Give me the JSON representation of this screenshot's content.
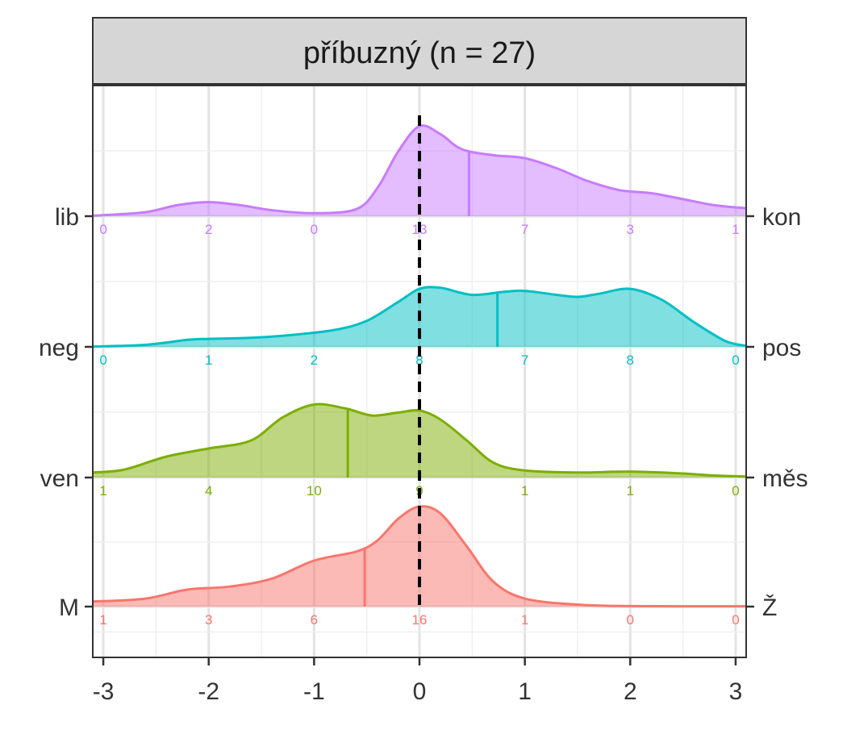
{
  "chart_data": {
    "type": "area",
    "title": "příbuzný (n = 27)",
    "xlim": [
      -3.1,
      3.1
    ],
    "x_ticks": [
      -3,
      -2,
      -1,
      0,
      1,
      2,
      3
    ],
    "x_tick_labels": [
      "-3",
      "-2",
      "-1",
      "0",
      "1",
      "2",
      "3"
    ],
    "reference_line_x": 0,
    "grid": true,
    "series": [
      {
        "left_label": "lib",
        "right_label": "kon",
        "color": "#C77CFF",
        "mean": 0.47,
        "count_positions": [
          -3,
          -2,
          -1,
          0,
          1,
          2,
          3
        ],
        "counts": [
          "0",
          "2",
          "0",
          "13",
          "7",
          "3",
          "1"
        ],
        "density": [
          [
            -3.1,
            0.005
          ],
          [
            -3,
            0.01
          ],
          [
            -2.6,
            0.04
          ],
          [
            -2.3,
            0.11
          ],
          [
            -2,
            0.14
          ],
          [
            -1.7,
            0.11
          ],
          [
            -1.4,
            0.06
          ],
          [
            -1,
            0.03
          ],
          [
            -0.6,
            0.07
          ],
          [
            -0.4,
            0.28
          ],
          [
            -0.2,
            0.65
          ],
          [
            0,
            0.9
          ],
          [
            0.2,
            0.82
          ],
          [
            0.4,
            0.67
          ],
          [
            0.7,
            0.61
          ],
          [
            1,
            0.58
          ],
          [
            1.3,
            0.48
          ],
          [
            1.6,
            0.35
          ],
          [
            1.9,
            0.26
          ],
          [
            2.2,
            0.23
          ],
          [
            2.5,
            0.17
          ],
          [
            2.8,
            0.11
          ],
          [
            3.1,
            0.08
          ]
        ]
      },
      {
        "left_label": "neg",
        "right_label": "pos",
        "color": "#00BFC4",
        "mean": 0.74,
        "count_positions": [
          -3,
          -2,
          -1,
          0,
          1,
          2,
          3
        ],
        "counts": [
          "0",
          "1",
          "2",
          "8",
          "7",
          "8",
          "0"
        ],
        "density": [
          [
            -3.1,
            0.003
          ],
          [
            -2.6,
            0.02
          ],
          [
            -2.2,
            0.07
          ],
          [
            -2,
            0.08
          ],
          [
            -1.6,
            0.09
          ],
          [
            -1.2,
            0.12
          ],
          [
            -0.8,
            0.17
          ],
          [
            -0.5,
            0.26
          ],
          [
            -0.2,
            0.45
          ],
          [
            0,
            0.58
          ],
          [
            0.2,
            0.59
          ],
          [
            0.5,
            0.52
          ],
          [
            0.8,
            0.55
          ],
          [
            1,
            0.56
          ],
          [
            1.3,
            0.52
          ],
          [
            1.5,
            0.5
          ],
          [
            1.7,
            0.53
          ],
          [
            2,
            0.58
          ],
          [
            2.3,
            0.47
          ],
          [
            2.6,
            0.25
          ],
          [
            2.9,
            0.06
          ],
          [
            3.1,
            0.01
          ]
        ]
      },
      {
        "left_label": "ven",
        "right_label": "měs",
        "color": "#7CAE00",
        "mean": -0.68,
        "count_positions": [
          -3,
          -2,
          -1,
          0,
          1,
          2,
          3
        ],
        "counts": [
          "1",
          "4",
          "10",
          "9",
          "1",
          "1",
          "0"
        ],
        "density": [
          [
            -3.1,
            0.05
          ],
          [
            -2.8,
            0.08
          ],
          [
            -2.4,
            0.21
          ],
          [
            -2,
            0.29
          ],
          [
            -1.6,
            0.37
          ],
          [
            -1.3,
            0.6
          ],
          [
            -1,
            0.73
          ],
          [
            -0.7,
            0.69
          ],
          [
            -0.45,
            0.62
          ],
          [
            -0.2,
            0.65
          ],
          [
            0,
            0.67
          ],
          [
            0.2,
            0.58
          ],
          [
            0.45,
            0.37
          ],
          [
            0.7,
            0.15
          ],
          [
            1,
            0.07
          ],
          [
            1.5,
            0.05
          ],
          [
            2,
            0.06
          ],
          [
            2.5,
            0.04
          ],
          [
            2.8,
            0.02
          ],
          [
            3.1,
            0.01
          ]
        ]
      },
      {
        "left_label": "M",
        "right_label": "Ž",
        "color": "#F8766D",
        "mean": -0.52,
        "count_positions": [
          -3,
          -2,
          -1,
          0,
          1,
          2,
          3
        ],
        "counts": [
          "1",
          "3",
          "6",
          "16",
          "1",
          "0",
          "0"
        ],
        "density": [
          [
            -3.1,
            0.05
          ],
          [
            -2.6,
            0.08
          ],
          [
            -2.2,
            0.17
          ],
          [
            -1.8,
            0.2
          ],
          [
            -1.4,
            0.28
          ],
          [
            -1,
            0.46
          ],
          [
            -0.6,
            0.55
          ],
          [
            -0.4,
            0.66
          ],
          [
            -0.2,
            0.88
          ],
          [
            0,
            1.0
          ],
          [
            0.2,
            0.93
          ],
          [
            0.45,
            0.6
          ],
          [
            0.7,
            0.25
          ],
          [
            1,
            0.08
          ],
          [
            1.5,
            0.02
          ],
          [
            2,
            0.005
          ],
          [
            3.1,
            0.003
          ]
        ]
      }
    ]
  }
}
